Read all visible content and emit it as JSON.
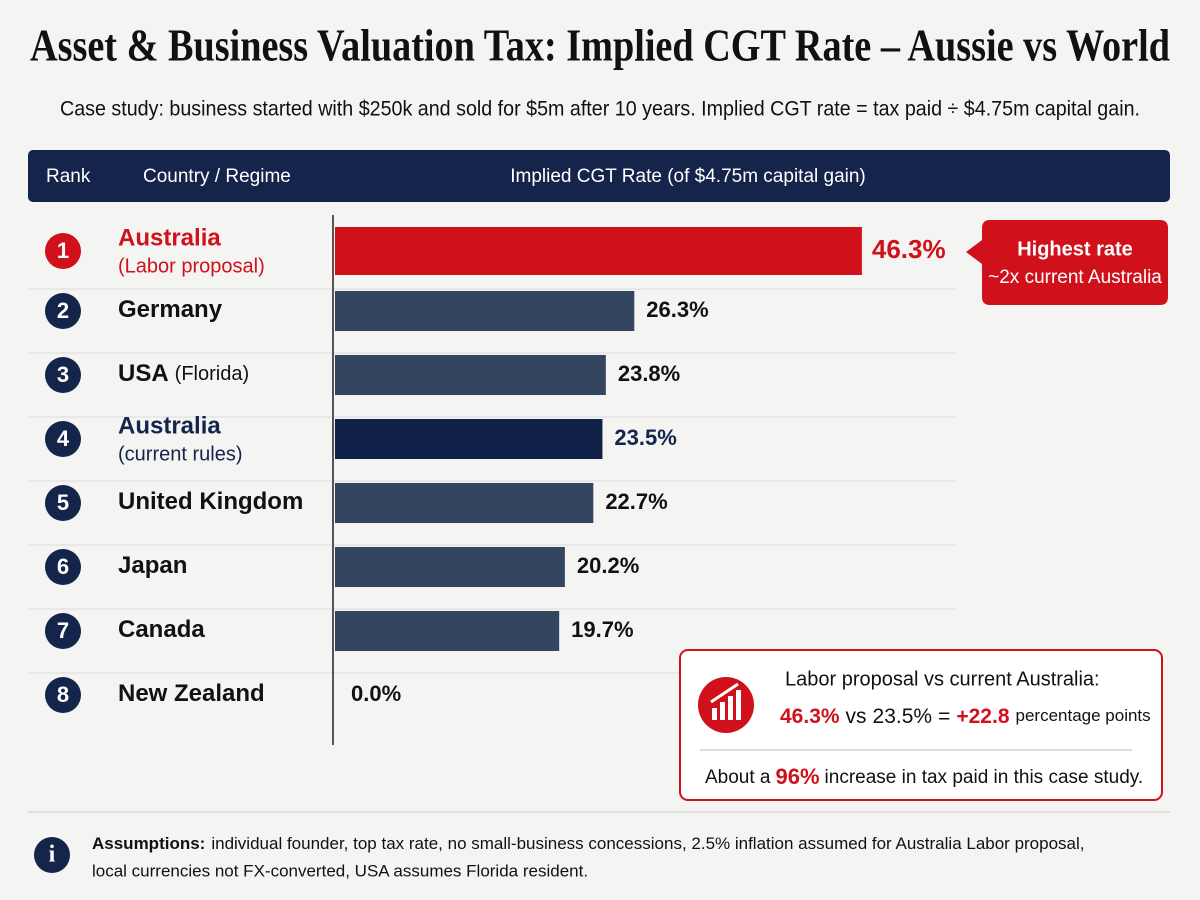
{
  "chart_data": {
    "type": "bar",
    "orientation": "horizontal",
    "title": "Asset & Business Valuation Tax: Implied CGT Rate – Aussie vs World",
    "subtitle": "Case study: business started with $250k and sold for $5m after 10 years. Implied CGT rate = tax paid ÷ $4.75m capital gain.",
    "header": [
      "Rank",
      "Country / Regime",
      "Implied CGT Rate (of $4.75m capital gain)"
    ],
    "ranks": [
      "1",
      "2",
      "3",
      "4",
      "5",
      "6",
      "7",
      "8"
    ],
    "categories": [
      "Australia",
      "Germany",
      "USA",
      "Australia",
      "United Kingdom",
      "Japan",
      "Canada",
      "New Zealand"
    ],
    "sublabels": [
      "(Labor proposal)",
      null,
      "(Florida)",
      "(current rules)",
      null,
      null,
      null,
      null
    ],
    "values": [
      46.3,
      26.3,
      23.8,
      23.5,
      22.7,
      20.2,
      19.7,
      0.0
    ],
    "value_labels": [
      "46.3%",
      "26.3%",
      "23.8%",
      "23.5%",
      "22.7%",
      "20.2%",
      "19.7%",
      "0.0%"
    ],
    "colors": [
      "#d0111b",
      "#344560",
      "#344560",
      "#0f2147",
      "#344560",
      "#344560",
      "#344560",
      "#344560"
    ],
    "label_colors": [
      "#d0111b",
      "#111111",
      "#111111",
      "#14244a",
      "#111111",
      "#111111",
      "#111111",
      "#111111"
    ],
    "rank_colors": [
      "#d0111b",
      "#14244a",
      "#14244a",
      "#14244a",
      "#14244a",
      "#14244a",
      "#14244a",
      "#14244a"
    ],
    "xlim": [
      0,
      50
    ],
    "callout_top": {
      "title": "Highest rate",
      "text": "~2x current Australia"
    },
    "callout_box": {
      "heading": "Labor proposal vs current Australia:",
      "comparison": [
        "46.3%",
        "vs",
        "23.5%",
        "=",
        "+22.8",
        "percentage points"
      ],
      "increase": [
        "About a",
        "96%",
        "increase in tax paid in this case study."
      ]
    },
    "footnote": {
      "label": "Assumptions:",
      "line1": "individual founder, top tax rate, no small-business concessions, 2.5% inflation assumed for Australia Labor proposal,",
      "line2": "local currencies not FX-converted, USA assumes Florida resident."
    }
  }
}
